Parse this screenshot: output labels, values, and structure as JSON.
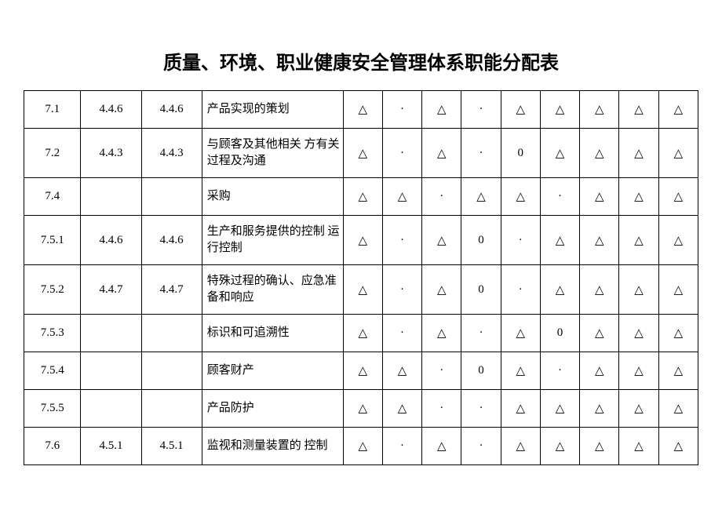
{
  "title": "质量、环境、职业健康安全管理体系职能分配表",
  "symbols": {
    "tri": "△",
    "dot": "·",
    "zero": "0"
  },
  "rows": [
    {
      "c1": "7.1",
      "c2": "4.4.6",
      "c3": "4.4.6",
      "desc": "产品实现的策划",
      "s": [
        "△",
        "·",
        "△",
        "·",
        "△",
        "△",
        "△",
        "△",
        "△"
      ]
    },
    {
      "c1": "7.2",
      "c2": "4.4.3",
      "c3": "4.4.3",
      "desc": "与顾客及其他相关 方有关过程及沟通",
      "s": [
        "△",
        "·",
        "△",
        "·",
        "0",
        "△",
        "△",
        "△",
        "△"
      ]
    },
    {
      "c1": "7.4",
      "c2": "",
      "c3": "",
      "desc": "采购",
      "s": [
        "△",
        "△",
        "·",
        "△",
        "△",
        "·",
        "△",
        "△",
        "△"
      ]
    },
    {
      "c1": "7.5.1",
      "c2": "4.4.6",
      "c3": "4.4.6",
      "desc": "生产和服务提供的控制  运行控制",
      "s": [
        "△",
        "·",
        "△",
        "0",
        "·",
        "△",
        "△",
        "△",
        "△"
      ]
    },
    {
      "c1": "7.5.2",
      "c2": "4.4.7",
      "c3": "4.4.7",
      "desc": "特殊过程的确认、应急准备和响应",
      "s": [
        "△",
        "·",
        "△",
        "0",
        "·",
        "△",
        "△",
        "△",
        "△"
      ]
    },
    {
      "c1": "7.5.3",
      "c2": "",
      "c3": "",
      "desc": "标识和可追溯性",
      "s": [
        "△",
        "·",
        "△",
        "·",
        "△",
        "0",
        "△",
        "△",
        "△"
      ]
    },
    {
      "c1": "7.5.4",
      "c2": "",
      "c3": "",
      "desc": "顾客财产",
      "s": [
        "△",
        "△",
        "·",
        "0",
        "△",
        "·",
        "△",
        "△",
        "△"
      ]
    },
    {
      "c1": "7.5.5",
      "c2": "",
      "c3": "",
      "desc": "产品防护",
      "s": [
        "△",
        "△",
        "·",
        "·",
        "△",
        "△",
        "△",
        "△",
        "△"
      ]
    },
    {
      "c1": "7.6",
      "c2": "4.5.1",
      "c3": "4.5.1",
      "desc": "监视和测量装置的 控制",
      "s": [
        "△",
        "·",
        "△",
        "·",
        "△",
        "△",
        "△",
        "△",
        "△"
      ]
    }
  ]
}
